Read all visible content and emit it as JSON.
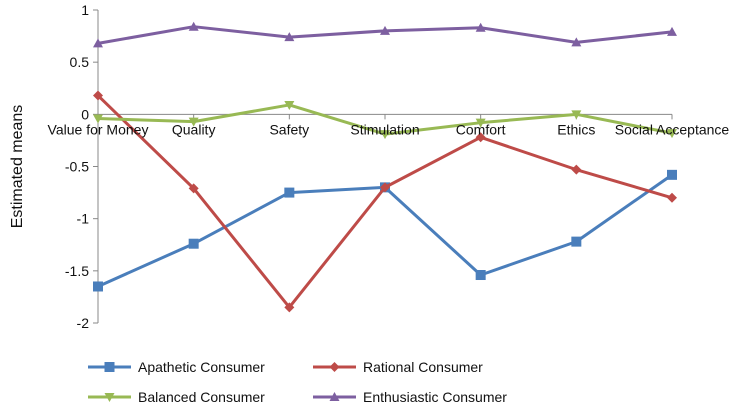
{
  "chart_data": {
    "type": "line",
    "title": "",
    "xlabel": "",
    "ylabel": "Estimated means",
    "ylim": [
      -2,
      1
    ],
    "yticks": [
      1,
      0.5,
      0,
      -0.5,
      -1,
      -1.5,
      -2
    ],
    "ytick_labels": [
      "1",
      "0.5",
      "0",
      "-0.5",
      "-1",
      "-1.5",
      "-2"
    ],
    "categories": [
      "Value for Money",
      "Quality",
      "Safety",
      "Stimulation",
      "Comfort",
      "Ethics",
      "Social Acceptance"
    ],
    "series": [
      {
        "name": "Apathetic Consumer",
        "color": "#4a7ebb",
        "marker": "square",
        "values": [
          -1.65,
          -1.24,
          -0.75,
          -0.7,
          -1.54,
          -1.22,
          -0.58
        ]
      },
      {
        "name": "Rational Consumer",
        "color": "#be4b48",
        "marker": "diamond",
        "values": [
          0.18,
          -0.71,
          -1.85,
          -0.7,
          -0.22,
          -0.53,
          -0.8
        ]
      },
      {
        "name": "Balanced Consumer",
        "color": "#98b954",
        "marker": "triangle-down",
        "values": [
          -0.04,
          -0.07,
          0.09,
          -0.19,
          -0.08,
          0.0,
          -0.18
        ]
      },
      {
        "name": "Enthusiastic Consumer",
        "color": "#7d5fa0",
        "marker": "triangle-up",
        "values": [
          0.68,
          0.84,
          0.74,
          0.8,
          0.83,
          0.69,
          0.79
        ]
      }
    ],
    "legend": {
      "placement": "bottom"
    },
    "grid": false
  }
}
